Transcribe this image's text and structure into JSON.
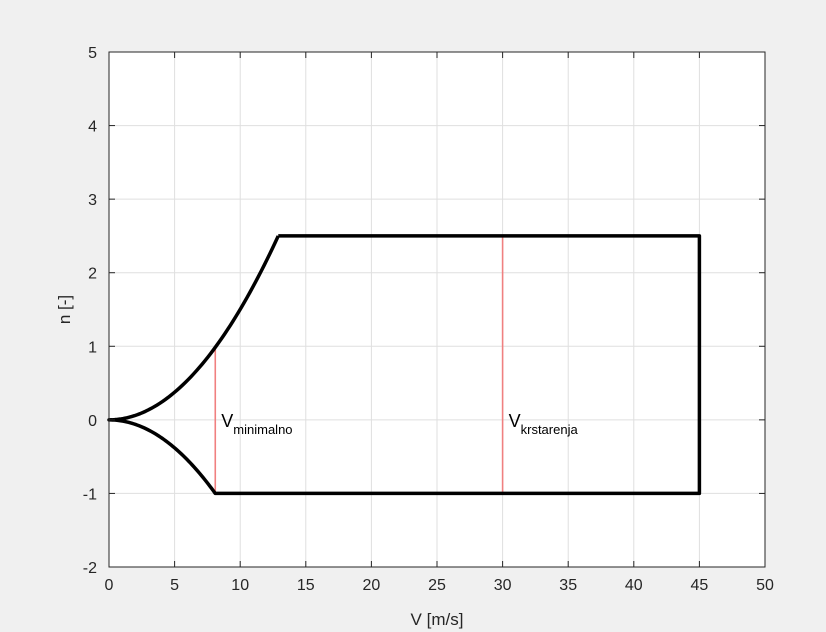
{
  "chart_data": {
    "type": "line",
    "xlabel": "V [m/s]",
    "ylabel": "n [-]",
    "xlim": [
      0,
      50
    ],
    "ylim": [
      -2,
      5
    ],
    "xticks": [
      0,
      5,
      10,
      15,
      20,
      25,
      30,
      35,
      40,
      45,
      50
    ],
    "yticks": [
      -2,
      -1,
      0,
      1,
      2,
      3,
      4,
      5
    ],
    "grid": true,
    "envelope": {
      "color": "#000000",
      "upper_curve": {
        "formula": "n = (V/Vmax)^2 * 2.5",
        "v_end": 12.9,
        "n_max": 2.5
      },
      "lower_curve": {
        "formula": "n = -(V/Vmin)^2",
        "v_end": 8.1,
        "n_min": -1
      },
      "v_max": 45,
      "n_upper": 2.5,
      "n_lower": -1
    },
    "markers": [
      {
        "x": 8.1,
        "y_from": -1,
        "y_to": 1.0,
        "color": "#f08080",
        "label_main": "V",
        "label_sub": "minimalno",
        "label_y": 0
      },
      {
        "x": 30,
        "y_from": -1,
        "y_to": 2.5,
        "color": "#f08080",
        "label_main": "V",
        "label_sub": "krstarenja",
        "label_y": 0
      }
    ]
  }
}
